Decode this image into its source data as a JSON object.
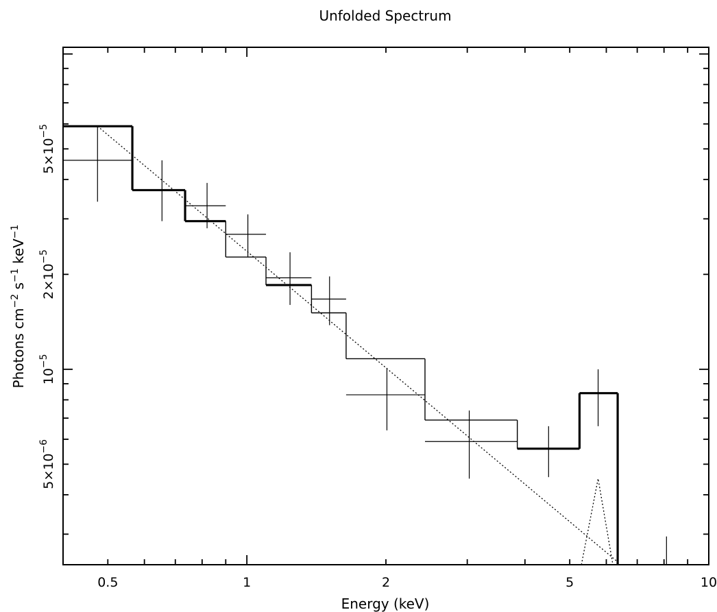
{
  "chart_data": {
    "type": "line",
    "title": "Unfolded Spectrum",
    "xlabel": "Energy (keV)",
    "ylabel": "Photons cm^-2 s^-1 keV^-1",
    "xscale": "log",
    "yscale": "log",
    "xlim": [
      0.4,
      10
    ],
    "ylim": [
      2.4e-06,
      0.000105
    ],
    "x_tick_labels": [
      {
        "value": 0.5,
        "label": "0.5"
      },
      {
        "value": 1,
        "label": "1"
      },
      {
        "value": 2,
        "label": "2"
      },
      {
        "value": 5,
        "label": "5"
      },
      {
        "value": 10,
        "label": "10"
      }
    ],
    "y_tick_labels": [
      {
        "value": 5e-06,
        "mantissa": "5×10",
        "exponent": "−6"
      },
      {
        "value": 1e-05,
        "mantissa": "10",
        "exponent": "−5"
      },
      {
        "value": 2e-05,
        "mantissa": "2×10",
        "exponent": "−5"
      },
      {
        "value": 5e-05,
        "mantissa": "5×10",
        "exponent": "−5"
      }
    ],
    "grid": false,
    "series": [
      {
        "kind": "data-crosses",
        "points": [
          {
            "x": 0.475,
            "xlo": 0.4,
            "xhi": 0.565,
            "y": 4.6e-05,
            "ylo": 3.4e-05,
            "yhi": 5.9e-05
          },
          {
            "x": 0.655,
            "xlo": 0.565,
            "xhi": 0.735,
            "y": 3.7e-05,
            "ylo": 2.95e-05,
            "yhi": 4.6e-05
          },
          {
            "x": 0.82,
            "xlo": 0.735,
            "xhi": 0.9,
            "y": 3.3e-05,
            "ylo": 2.8e-05,
            "yhi": 3.9e-05
          },
          {
            "x": 1.005,
            "xlo": 0.9,
            "xhi": 1.1,
            "y": 2.68e-05,
            "ylo": 2.27e-05,
            "yhi": 3.1e-05
          },
          {
            "x": 1.24,
            "xlo": 1.1,
            "xhi": 1.38,
            "y": 1.95e-05,
            "ylo": 1.6e-05,
            "yhi": 2.35e-05
          },
          {
            "x": 1.51,
            "xlo": 1.38,
            "xhi": 1.64,
            "y": 1.67e-05,
            "ylo": 1.38e-05,
            "yhi": 1.97e-05
          },
          {
            "x": 2.01,
            "xlo": 1.64,
            "xhi": 2.43,
            "y": 8.3e-06,
            "ylo": 6.4e-06,
            "yhi": 1.01e-05
          },
          {
            "x": 3.03,
            "xlo": 2.43,
            "xhi": 3.85,
            "y": 5.9e-06,
            "ylo": 4.5e-06,
            "yhi": 7.4e-06
          },
          {
            "x": 4.5,
            "xlo": 3.85,
            "xhi": 5.25,
            "y": 5.6e-06,
            "ylo": 4.55e-06,
            "yhi": 6.6e-06
          },
          {
            "x": 5.76,
            "xlo": 5.25,
            "xhi": 6.35,
            "y": 8.4e-06,
            "ylo": 6.6e-06,
            "yhi": 1e-05
          },
          {
            "x": 8.1,
            "y": 2.4e-06,
            "yhi": 2.95e-06
          }
        ]
      },
      {
        "kind": "total-model-histogram",
        "bins": [
          {
            "x0": 0.4,
            "x1": 0.565,
            "y": 5.9e-05,
            "heavy": true
          },
          {
            "x0": 0.565,
            "x1": 0.735,
            "y": 3.7e-05,
            "heavy": true
          },
          {
            "x0": 0.735,
            "x1": 0.9,
            "y": 2.95e-05,
            "heavy": true
          },
          {
            "x0": 0.9,
            "x1": 1.1,
            "y": 2.27e-05,
            "heavy": false
          },
          {
            "x0": 1.1,
            "x1": 1.38,
            "y": 1.85e-05,
            "heavy": true
          },
          {
            "x0": 1.38,
            "x1": 1.64,
            "y": 1.51e-05,
            "heavy": false
          },
          {
            "x0": 1.64,
            "x1": 2.43,
            "y": 1.08e-05,
            "heavy": false
          },
          {
            "x0": 2.43,
            "x1": 3.85,
            "y": 6.9e-06,
            "heavy": false
          },
          {
            "x0": 3.85,
            "x1": 5.25,
            "y": 5.6e-06,
            "heavy": true
          },
          {
            "x0": 5.25,
            "x1": 6.35,
            "y": 8.4e-06,
            "heavy": true
          }
        ]
      },
      {
        "kind": "continuum-model-dotted",
        "points": [
          [
            0.475,
            5.9e-05
          ],
          [
            6.35,
            2.45e-06
          ]
        ]
      },
      {
        "kind": "line-component-dotted",
        "points": [
          [
            5.3,
            2.4e-06
          ],
          [
            5.76,
            4.5e-06
          ],
          [
            6.2,
            2.4e-06
          ]
        ]
      }
    ]
  }
}
